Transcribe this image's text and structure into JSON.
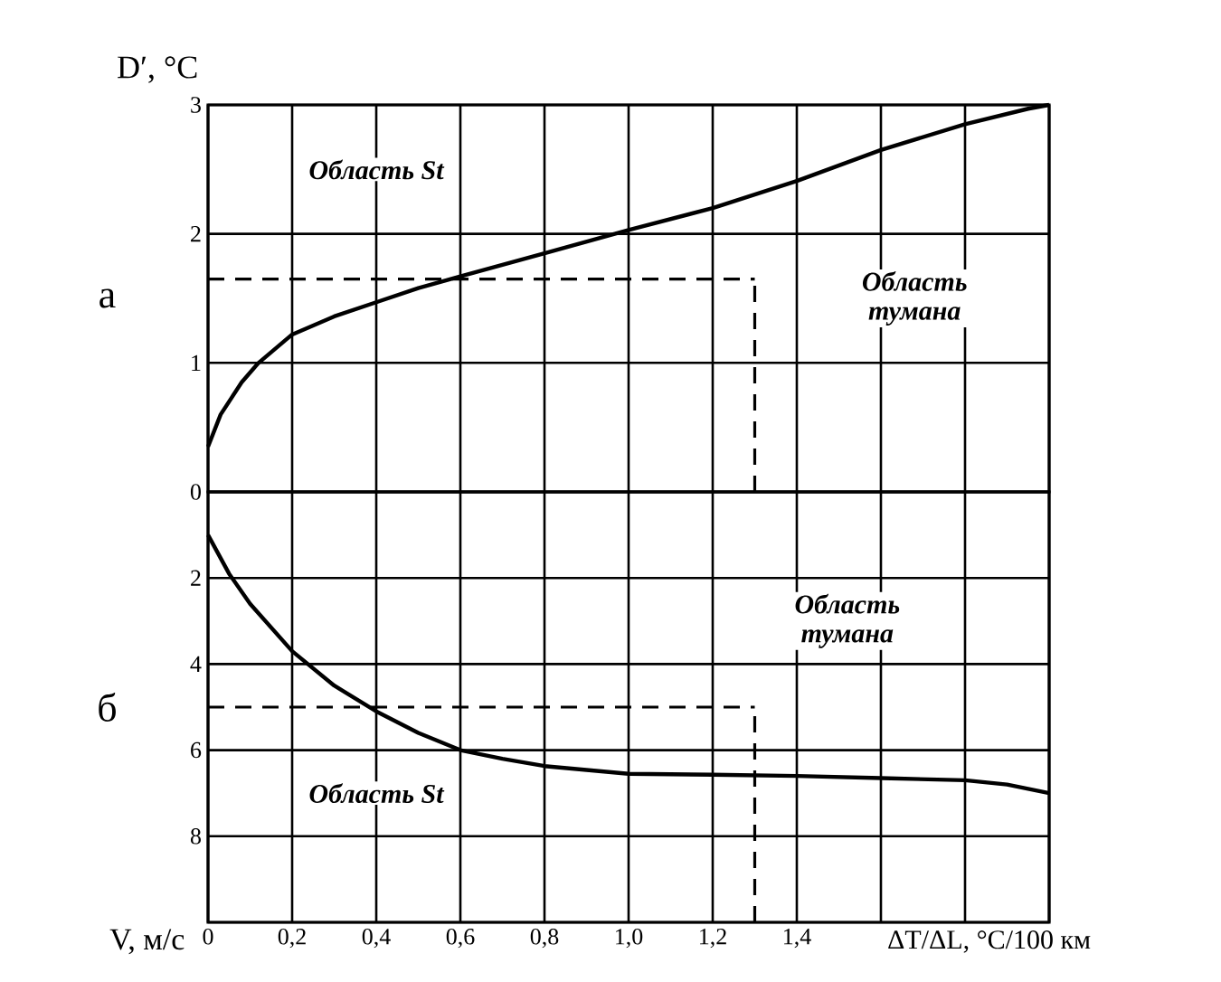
{
  "chart_data": [
    {
      "type": "line",
      "xlim": [
        0,
        2
      ],
      "xticks": [
        {
          "value": 0,
          "label": null
        },
        {
          "value": 0.2,
          "label": null
        },
        {
          "value": 0.4,
          "label": null
        },
        {
          "value": 0.6,
          "label": null
        },
        {
          "value": 0.8,
          "label": null
        },
        {
          "value": 1.0,
          "label": null
        },
        {
          "value": 1.2,
          "label": null
        },
        {
          "value": 1.4,
          "label": null
        },
        {
          "value": 1.6,
          "label": null
        },
        {
          "value": 1.8,
          "label": null
        },
        {
          "value": 2.0,
          "label": null
        }
      ],
      "ylim": [
        0,
        3
      ],
      "yticks": [
        0,
        1,
        2,
        3
      ],
      "ylabel": "D′, °C",
      "grid": true,
      "tick_labels": "y",
      "series": [
        {
          "x": [
            0,
            0.03,
            0.08,
            0.12,
            0.2,
            0.3,
            0.4,
            0.5,
            0.6,
            0.8,
            1.0,
            1.2,
            1.4,
            1.6,
            1.8,
            1.95,
            2.0
          ],
          "values": [
            0.35,
            0.6,
            0.85,
            1.0,
            1.22,
            1.36,
            1.47,
            1.58,
            1.67,
            1.85,
            2.03,
            2.2,
            2.41,
            2.65,
            2.85,
            2.97,
            3.0
          ],
          "color": "#000000"
        },
        {
          "x": [
            0,
            1.3
          ],
          "values": [
            1.65,
            1.65
          ],
          "color": "#000000",
          "line_style": "dashed"
        },
        {
          "x": [
            1.3,
            1.3
          ],
          "values": [
            0,
            1.62
          ],
          "color": "#000000",
          "line_style": "dashed"
        }
      ],
      "annotations": [
        "а",
        "Область St",
        "Область тумана"
      ]
    },
    {
      "type": "line",
      "xlim": [
        0,
        2
      ],
      "xticks": [
        0,
        {
          "value": 0.2,
          "label": "0,2"
        },
        {
          "value": 0.4,
          "label": "0,4"
        },
        {
          "value": 0.6,
          "label": "0,6"
        },
        {
          "value": 0.8,
          "label": "0,8"
        },
        {
          "value": 1.0,
          "label": "1,0"
        },
        {
          "value": 1.2,
          "label": "1,2"
        },
        {
          "value": 1.4,
          "label": "1,4"
        },
        {
          "value": 1.6,
          "label": null
        },
        {
          "value": 1.8,
          "label": null
        },
        {
          "value": 2.0,
          "label": null
        }
      ],
      "ylim": [
        10,
        0
      ],
      "yticks": [
        {
          "value": 0,
          "label": null
        },
        2,
        4,
        6,
        8,
        {
          "value": 10,
          "label": null
        }
      ],
      "ylabel": "V, м/с",
      "xlabel": "ΔT/ΔL, °C/100 км",
      "grid": true,
      "series": [
        {
          "x": [
            0,
            0.05,
            0.1,
            0.2,
            0.3,
            0.4,
            0.5,
            0.6,
            0.7,
            0.8,
            1.0,
            1.2,
            1.4,
            1.6,
            1.8,
            1.9,
            2.0
          ],
          "values": [
            1.0,
            1.9,
            2.6,
            3.7,
            4.5,
            5.1,
            5.6,
            6.0,
            6.2,
            6.37,
            6.55,
            6.57,
            6.6,
            6.65,
            6.7,
            6.8,
            7.0
          ],
          "color": "#000000"
        },
        {
          "x": [
            0,
            1.3
          ],
          "values": [
            5.0,
            5.0
          ],
          "color": "#000000",
          "line_style": "dashed"
        },
        {
          "x": [
            1.3,
            1.3
          ],
          "values": [
            10,
            5.1
          ],
          "color": "#000000",
          "line_style": "dashed"
        }
      ],
      "annotations": [
        "б",
        "Область тумана",
        "Область St"
      ]
    }
  ]
}
